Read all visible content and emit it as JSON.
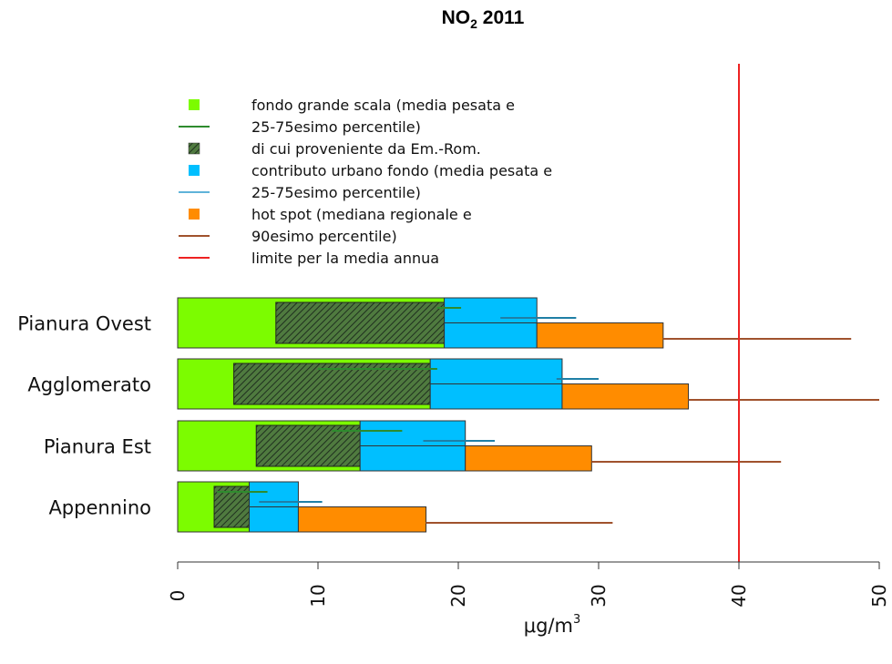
{
  "chart_data": {
    "type": "bar",
    "orientation": "horizontal",
    "stacked": true,
    "title": {
      "main": "NO",
      "subscript": "2",
      "rest": " 2011"
    },
    "xlabel": {
      "main": "μg/m",
      "superscript": "3"
    },
    "xlim": [
      0,
      50
    ],
    "xticks": [
      "0",
      "10",
      "20",
      "30",
      "40",
      "50"
    ],
    "categories": [
      "Pianura Ovest",
      "Agglomerato",
      "Pianura Est",
      "Appennino"
    ],
    "series": [
      {
        "key": "fondo",
        "color": "#7CFC00",
        "values": [
          19.0,
          18.0,
          13.0,
          5.1
        ],
        "p25": [
          18.5,
          10.0,
          11.0,
          2.8
        ],
        "p75": [
          20.2,
          18.5,
          16.0,
          6.4
        ],
        "errorColor": "#2e8b2e"
      },
      {
        "key": "em_rom",
        "color": "#2e5f2e",
        "start": [
          7.0,
          4.0,
          5.6,
          2.6
        ],
        "end": [
          19.0,
          18.0,
          13.0,
          5.1
        ]
      },
      {
        "key": "urbano",
        "color": "#00BFFF",
        "values": [
          6.6,
          9.4,
          7.5,
          3.5
        ],
        "p25": [
          23.0,
          27.0,
          17.5,
          5.8
        ],
        "p75": [
          28.4,
          30.0,
          22.6,
          10.3
        ],
        "errorColor": "#1f7fa6"
      },
      {
        "key": "hotspot",
        "color": "#FF8C00",
        "values": [
          9.0,
          9.0,
          9.0,
          9.1
        ],
        "p90": [
          48.0,
          50.0,
          43.0,
          31.0
        ],
        "errorColor": "#a0522d"
      }
    ],
    "limit": {
      "value": 40,
      "color": "#ee2222"
    },
    "legend": {
      "position": "top-left",
      "items": [
        {
          "symbol": "box",
          "color": "#7CFC00",
          "text": "fondo grande scala (media pesata e"
        },
        {
          "symbol": "line",
          "color": "#2e8b2e",
          "text": "25-75esimo percentile)"
        },
        {
          "symbol": "hatch",
          "color": "#2e5f2e",
          "text": "di cui proveniente da Em.-Rom."
        },
        {
          "symbol": "box",
          "color": "#00BFFF",
          "text": "contributo urbano fondo (media pesata e"
        },
        {
          "symbol": "line",
          "color": "#5fb3d9",
          "text": "25-75esimo percentile)"
        },
        {
          "symbol": "box",
          "color": "#FF8C00",
          "text": "hot spot (mediana regionale e"
        },
        {
          "symbol": "line",
          "color": "#a0522d",
          "text": "90esimo percentile)"
        },
        {
          "symbol": "line",
          "color": "#ee2222",
          "text": "limite per la media annua"
        }
      ]
    }
  }
}
